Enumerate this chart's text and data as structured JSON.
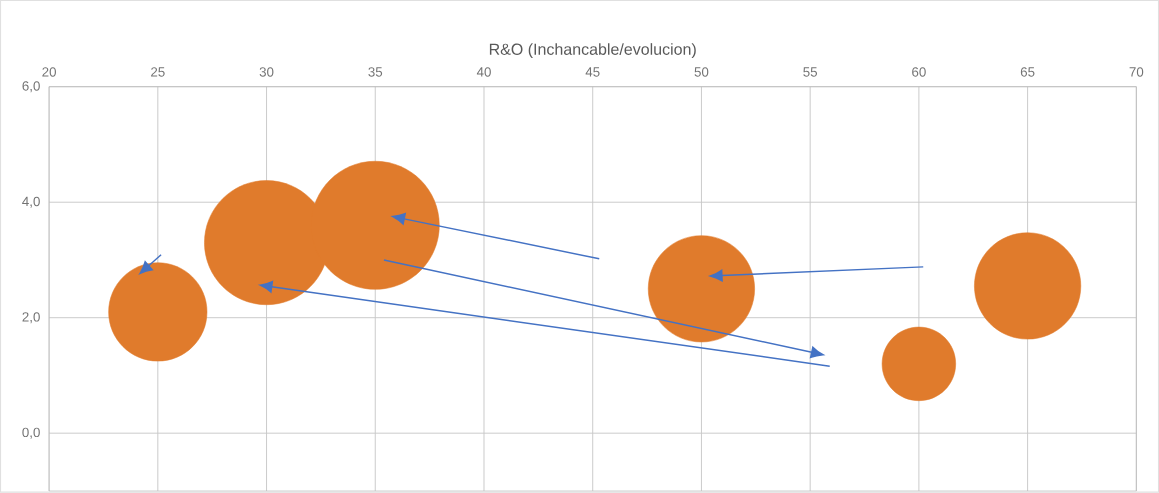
{
  "chart_data": {
    "type": "bubble",
    "xlabel": "R&O (Inchancable/evolucion)",
    "x": [
      25,
      30,
      35,
      50,
      60,
      65
    ],
    "series": [
      {
        "color": "#e07b2c",
        "values": [
          2.1,
          3.3,
          3.6,
          2.5,
          1.2,
          2.55
        ],
        "sizes": [
          0.59,
          0.94,
          1,
          0.69,
          0.33,
          0.69
        ]
      }
    ],
    "xlim": [
      20,
      70
    ],
    "xticks": [
      20,
      25,
      30,
      35,
      40,
      45,
      50,
      55,
      60,
      65,
      70
    ],
    "ylim": [
      -1,
      6
    ],
    "yticks": [
      {
        "value": 0,
        "label": "0,0"
      },
      {
        "value": 2,
        "label": "2,0"
      },
      {
        "value": 4,
        "label": "4,0"
      },
      {
        "value": 6,
        "label": "6,0"
      }
    ],
    "grid": true
  }
}
